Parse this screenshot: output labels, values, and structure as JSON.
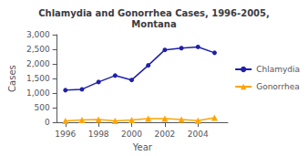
{
  "chart_data": {
    "type": "line",
    "title": "Chlamydia and Gonorrhea Cases, 1996-2005,\nMontana",
    "xlabel": "Year",
    "ylabel": "Cases",
    "x": [
      1996,
      1997,
      1998,
      1999,
      2000,
      2001,
      2002,
      2003,
      2004,
      2005
    ],
    "series": [
      {
        "name": "Chlamydia",
        "color": "#2020aa",
        "marker": "circle",
        "values": [
          1100,
          1130,
          1380,
          1600,
          1450,
          1950,
          2480,
          2540,
          2580,
          2380
        ]
      },
      {
        "name": "Gonorrhea",
        "color": "#FFA500",
        "marker": "triangle",
        "values": [
          50,
          80,
          100,
          50,
          80,
          130,
          130,
          100,
          60,
          160
        ]
      }
    ],
    "xlim": [
      1995.5,
      2005.8
    ],
    "xticks": [
      1996,
      1998,
      2000,
      2002,
      2004
    ],
    "ylim": [
      0,
      3000
    ],
    "yticks": [
      0,
      500,
      {
        "value": 1000,
        "label": "1,000"
      },
      {
        "value": 1500,
        "label": "1,500"
      },
      {
        "value": 2000,
        "label": "2,000"
      },
      {
        "value": 2500,
        "label": "2,500"
      },
      {
        "value": 3000,
        "label": "3,000"
      }
    ],
    "grid": false,
    "legend": "right"
  }
}
